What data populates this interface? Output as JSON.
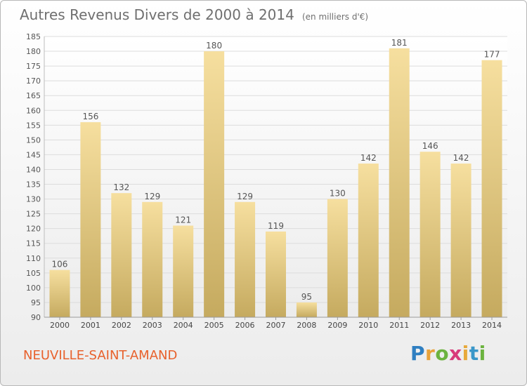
{
  "title": "Autres Revenus Divers de 2000 à 2014",
  "subtitle": "(en milliers d'€)",
  "footer": {
    "place": "NEUVILLE-SAINT-AMAND"
  },
  "logo": {
    "text": "Proxiti",
    "letters": [
      "P",
      "r",
      "o",
      "x",
      "i",
      "t",
      "i"
    ],
    "colors": [
      "#2f7fc1",
      "#e8a23a",
      "#6cb33f",
      "#d83a7a",
      "#e7a93b",
      "#3a97c9",
      "#6cb33f"
    ]
  },
  "colors": {
    "bar_light": "#f4dd9c",
    "bar_dark": "#c8ad63",
    "label": "#555555",
    "grid": "#dcdcdc"
  },
  "chart_data": {
    "type": "bar",
    "title": "Autres Revenus Divers de 2000 à 2014",
    "subtitle": "(en milliers d'€)",
    "categories": [
      "2000",
      "2001",
      "2002",
      "2003",
      "2004",
      "2005",
      "2006",
      "2007",
      "2008",
      "2009",
      "2010",
      "2011",
      "2012",
      "2013",
      "2014"
    ],
    "values": [
      106,
      156,
      132,
      129,
      121,
      180,
      129,
      119,
      95,
      130,
      142,
      181,
      146,
      142,
      177
    ],
    "xlabel": "",
    "ylabel": "",
    "ylim": [
      90,
      185
    ],
    "yticks": [
      90,
      95,
      100,
      105,
      110,
      115,
      120,
      125,
      130,
      135,
      140,
      145,
      150,
      155,
      160,
      165,
      170,
      175,
      180,
      185
    ],
    "grid": true
  }
}
